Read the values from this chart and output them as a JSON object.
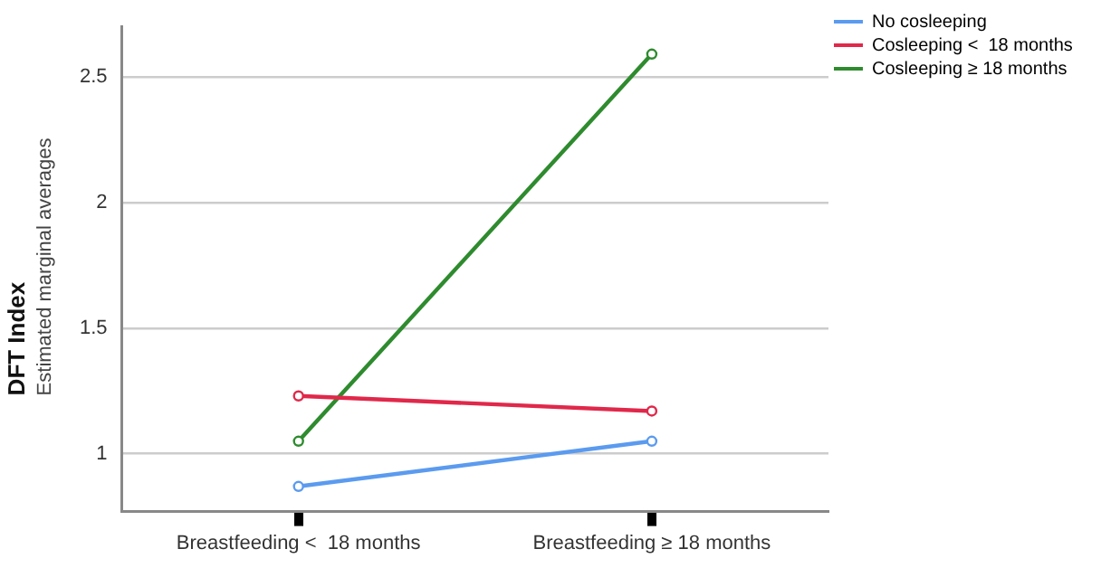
{
  "chart_data": {
    "type": "line",
    "ylabel": "DFT Index",
    "annotations": [
      "Estimated marginal averages"
    ],
    "categories": [
      "Breastfeeding <  18 months",
      "Breastfeeding ≥ 18 months"
    ],
    "series": [
      {
        "name": "No cosleeping",
        "color": "#5b9bef",
        "values": [
          0.87,
          1.05
        ]
      },
      {
        "name": "Cosleeping <  18 months",
        "color": "#e0284a",
        "values": [
          1.23,
          1.17
        ]
      },
      {
        "name": "Cosleeping ≥ 18 months",
        "color": "#2e8b2e",
        "values": [
          1.05,
          2.59
        ]
      }
    ],
    "ylim": [
      0.77,
      2.7
    ],
    "yticks": [
      1,
      1.5,
      2,
      2.5
    ],
    "grid": "y",
    "legend": "top right",
    "marker": "circle",
    "line_style": "solid"
  }
}
